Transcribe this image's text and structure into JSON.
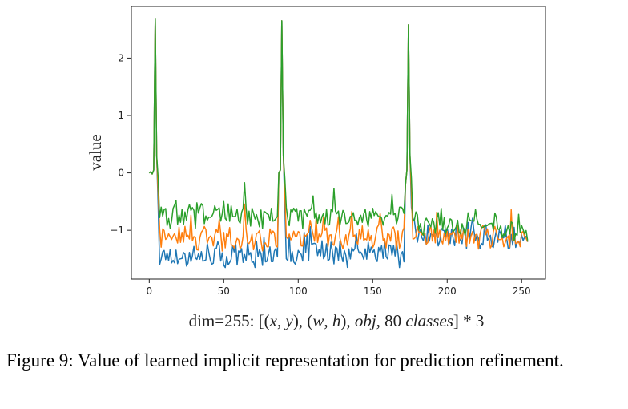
{
  "caption": {
    "figure_label": "Figure 9:",
    "text": "Value of learned implicit representation for prediction refinement."
  },
  "xlabel_parts": {
    "p1": "dim=255: [(",
    "p2": "x",
    "p3": ", ",
    "p4": "y",
    "p5": "), (",
    "p6": "w",
    "p7": ", ",
    "p8": "h",
    "p9": "), ",
    "p10": "obj",
    "p11": ", 80 ",
    "p12": "classes",
    "p13": "] * 3"
  },
  "colors": {
    "series_blue": "#1f77b4",
    "series_orange": "#ff7f0e",
    "series_green": "#2ca02c"
  },
  "chart_data": {
    "type": "line",
    "title": "",
    "xlabel": "dim=255: [(x, y), (w, h), obj, 80 classes] * 3",
    "ylabel": "value",
    "xlim": [
      -12,
      266
    ],
    "ylim": [
      -1.85,
      2.9
    ],
    "xticks": [
      0,
      50,
      100,
      150,
      200,
      250
    ],
    "yticks": [
      -1,
      0,
      1,
      2
    ],
    "grid": false,
    "legend": "none",
    "x": "0..254 (255 dims)",
    "spikes": [
      {
        "x": 4,
        "values": [
          2.68,
          2.68,
          2.68
        ]
      },
      {
        "x": 89,
        "values": [
          2.65,
          2.65,
          2.65
        ]
      },
      {
        "x": 174,
        "values": [
          2.58,
          2.58,
          2.58
        ]
      }
    ],
    "series": [
      {
        "color": "#1f77b4",
        "start_values": [
          0,
          0.02,
          -0.02,
          0.05
        ],
        "baseline": [
          -1.45,
          -1.42,
          -1.1
        ],
        "segment_ranges": [
          [
            6,
            85
          ],
          [
            91,
            170
          ],
          [
            176,
            254
          ]
        ],
        "approx_min": -1.65,
        "approx_max": -1.0
      },
      {
        "color": "#ff7f0e",
        "start_values": [
          0,
          0.02,
          -0.02,
          0.05
        ],
        "baseline": [
          -1.15,
          -1.12,
          -1.1
        ],
        "segment_ranges": [
          [
            6,
            85
          ],
          [
            91,
            170
          ],
          [
            176,
            254
          ]
        ],
        "approx_min": -1.4,
        "approx_max": -0.6
      },
      {
        "color": "#2ca02c",
        "start_values": [
          0,
          0.02,
          -0.02,
          0.05
        ],
        "baseline": [
          -0.75,
          -0.75,
          -0.9
        ],
        "segment_ranges": [
          [
            6,
            85
          ],
          [
            91,
            170
          ],
          [
            176,
            254
          ]
        ],
        "approx_min": -1.05,
        "approx_max": -0.2
      }
    ]
  }
}
